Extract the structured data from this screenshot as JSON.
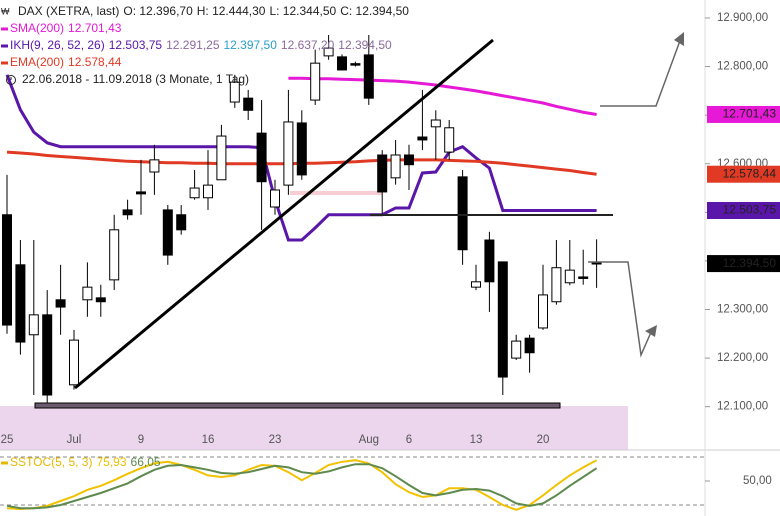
{
  "chart_data": [
    {
      "type": "candlestick",
      "title": "DAX (XETRA, last)",
      "header": [
        "O: 12.396,70",
        "H: 12.444,30",
        "L: 12.344,50",
        "C: 12.394,50"
      ],
      "period": "22.06.2018 - 11.09.2018 (3 Monate, 1 Tag)",
      "categories": [
        "25",
        null,
        null,
        null,
        null,
        "Jul",
        null,
        null,
        null,
        null,
        "9",
        null,
        null,
        null,
        null,
        "16",
        null,
        null,
        null,
        null,
        "23",
        null,
        null,
        null,
        null,
        null,
        null,
        "Aug",
        null,
        null,
        "6",
        null,
        null,
        null,
        null,
        "13",
        null,
        null,
        null,
        null,
        "20",
        null,
        null,
        null,
        null
      ],
      "open": [
        12495,
        12392,
        12248,
        12289,
        12320,
        12145,
        12320,
        12324,
        12361,
        12505,
        12542,
        12583,
        12505,
        12495,
        12530,
        12530,
        12567,
        12727,
        12735,
        12663,
        12511,
        12556,
        12684,
        12731,
        12822,
        12820,
        12806,
        12824,
        12618,
        12571,
        12618,
        12655,
        12676,
        12624,
        12573,
        12346,
        12443,
        12398,
        12200,
        12241,
        12262,
        12316,
        12355,
        12367,
        12396.7
      ],
      "high": [
        12577,
        12443,
        12443,
        12340,
        12392,
        12258,
        12397,
        12351,
        12495,
        12526,
        12608,
        12639,
        12515,
        12515,
        12587,
        12628,
        12680,
        12783,
        12752,
        12731,
        12567,
        12752,
        12710,
        12835,
        12865,
        12825,
        12810,
        12865,
        12628,
        12649,
        12639,
        12752,
        12710,
        12690,
        12587,
        12392,
        12460,
        12398,
        12248,
        12248,
        12392,
        12443,
        12443,
        12423,
        12444.3
      ],
      "low": [
        12250,
        12207,
        12124,
        12104,
        12248,
        12135,
        12285,
        12285,
        12340,
        12485,
        12495,
        12536,
        12392,
        12454,
        12526,
        12505,
        12567,
        12715,
        12690,
        12464,
        12495,
        12536,
        12567,
        12721,
        12814,
        12793,
        12800,
        12721,
        12495,
        12557,
        12546,
        12628,
        12608,
        12608,
        12392,
        12340,
        12295,
        12124,
        12196,
        12170,
        12258,
        12310,
        12350,
        12351,
        12344.5
      ],
      "close": [
        12268,
        12233,
        12289,
        12124,
        12305,
        12237,
        12346,
        12316,
        12464,
        12495,
        12538,
        12608,
        12412,
        12464,
        12550,
        12556,
        12657,
        12768,
        12710,
        12563,
        12546,
        12686,
        12577,
        12807,
        12838,
        12793,
        12803,
        12735,
        12542,
        12618,
        12598,
        12649,
        12690,
        12674,
        12423,
        12357,
        12357,
        12161,
        12235,
        12211,
        12330,
        12386,
        12381,
        12365,
        12394.5
      ],
      "close_label": "12.394,50",
      "up_color": "#ffffff",
      "down_color": "#000000",
      "overlays": [
        {
          "name": "SMA(200)",
          "color": "#e619d6",
          "value_label": "12.701,43",
          "tag_text_color": "#222",
          "values": [
            null,
            null,
            null,
            null,
            null,
            null,
            null,
            null,
            null,
            null,
            null,
            null,
            null,
            null,
            null,
            null,
            null,
            null,
            null,
            null,
            null,
            12776,
            12776,
            12775,
            12775,
            12774,
            12773,
            12772,
            12771,
            12770,
            12768,
            12765,
            12762,
            12758,
            12754,
            12750,
            12745,
            12740,
            12735,
            12730,
            12725,
            12718,
            12712,
            12706,
            12701.43
          ]
        },
        {
          "name": "IKH(9, 26, 52, 26)",
          "color": "#5a16a8",
          "value_label": "12.503,75",
          "tag_text_color": "#fff",
          "legend_extra": [
            {
              "label": "12.291,25",
              "color": "#8a6a9e"
            },
            {
              "label": "12.397,50",
              "color": "#2b9fc9"
            },
            {
              "label": "12.637,20",
              "color": "#8a6a9e"
            },
            {
              "label": "12.394,50",
              "color": "#8a6a9e"
            }
          ],
          "values": [
            12783,
            12711,
            12665,
            12643,
            12635,
            12635,
            12635,
            12635,
            12635,
            12635,
            12635,
            12635,
            12635,
            12635,
            12635,
            12635,
            12635,
            12635,
            12635,
            12633,
            12526,
            12443,
            12443,
            12468,
            12495,
            12495,
            12495,
            12495,
            12495,
            12509,
            12509,
            12581,
            12583,
            12624,
            12635,
            12612,
            12591,
            12503.75,
            12503.75,
            12503.75,
            12503.75,
            12503.75,
            12503.75,
            12503.75,
            12503.75
          ]
        },
        {
          "name": "EMA(200)",
          "color": "#e03a24",
          "value_label": "12.578,44",
          "tag_text_color": "#222",
          "values": [
            12624,
            12622,
            12620,
            12617,
            12615,
            12613,
            12611,
            12609,
            12607,
            12605,
            12604,
            12603,
            12602,
            12602,
            12601,
            12601,
            12600,
            12600,
            12600,
            12600,
            12600,
            12600,
            12601,
            12601,
            12602,
            12603,
            12604,
            12606,
            12607,
            12608,
            12608,
            12608,
            12608,
            12607,
            12606,
            12605,
            12603,
            12601,
            12598,
            12595,
            12592,
            12589,
            12586,
            12582,
            12578.44
          ]
        }
      ],
      "ylim": [
        12052,
        12937
      ],
      "yticks": [
        {
          "value": 12100,
          "label": "12.100,00"
        },
        {
          "value": 12200,
          "label": "12.200,00"
        },
        {
          "value": 12300,
          "label": "12.300,00"
        },
        {
          "value": 12400,
          "label": "12.400,00"
        },
        {
          "value": 12500,
          "label": "12.500,00"
        },
        {
          "value": 12600,
          "label": "12.600,00"
        },
        {
          "value": 12700,
          "label": "12.700,00"
        },
        {
          "value": 12800,
          "label": "12.800,00"
        },
        {
          "value": 12900,
          "label": "12.900,00"
        }
      ]
    },
    {
      "type": "line",
      "title": "SSTOC(5, 5, 3)",
      "title_color": "#e8b800",
      "series": [
        {
          "color": "#f2c200",
          "value_label": "75,93",
          "values": [
            16,
            15,
            16,
            19,
            25,
            31,
            39,
            44,
            51,
            59,
            66,
            72,
            74,
            70,
            64,
            57,
            55,
            57,
            64,
            70,
            69,
            61,
            51,
            60,
            70,
            74,
            76,
            72,
            61,
            46,
            36,
            30,
            32,
            41,
            41,
            39,
            30,
            20,
            14,
            20,
            32,
            45,
            57,
            67,
            75.93
          ]
        },
        {
          "color": "#5e8a4e",
          "value_label": "66,05",
          "values": [
            19,
            16,
            16,
            17,
            20,
            25,
            30,
            35,
            41,
            47,
            56,
            64,
            69,
            70,
            67,
            64,
            60,
            59,
            61,
            65,
            69,
            67,
            61,
            59,
            62,
            67,
            71,
            71,
            66,
            56,
            45,
            35,
            32,
            35,
            39,
            40,
            38,
            31,
            22,
            19,
            22,
            32,
            44,
            55,
            66.05
          ]
        }
      ],
      "hlines": [
        20,
        80
      ],
      "ylim": [
        6.25,
        88.75
      ],
      "yticks": [
        {
          "value": 50,
          "label": "50,00"
        }
      ]
    }
  ]
}
